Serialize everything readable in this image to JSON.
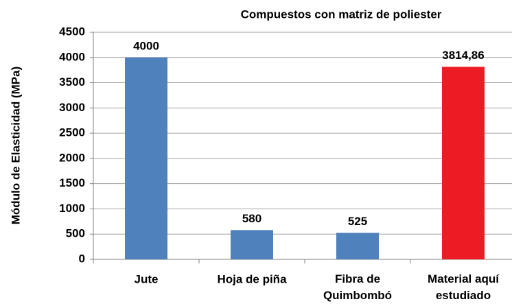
{
  "chart_data": {
    "type": "bar",
    "title": "Compuestos con matriz de poliester",
    "y_label": "Módulo de Elasticidad (MPa)",
    "categories": [
      "Jute",
      "Hoja de piña",
      "Fibra de\nQuimbombó",
      "Material aquí\nestudiado"
    ],
    "values": [
      4000,
      580,
      525,
      3814.86
    ],
    "value_labels": [
      "4000",
      "580",
      "525",
      "3814,86"
    ],
    "colors": [
      "#4f81bd",
      "#4f81bd",
      "#4f81bd",
      "#ed1c24"
    ],
    "ylim": [
      0,
      4500
    ],
    "yticks": [
      0,
      500,
      1000,
      1500,
      2000,
      2500,
      3000,
      3500,
      4000,
      4500
    ],
    "grid": true
  }
}
